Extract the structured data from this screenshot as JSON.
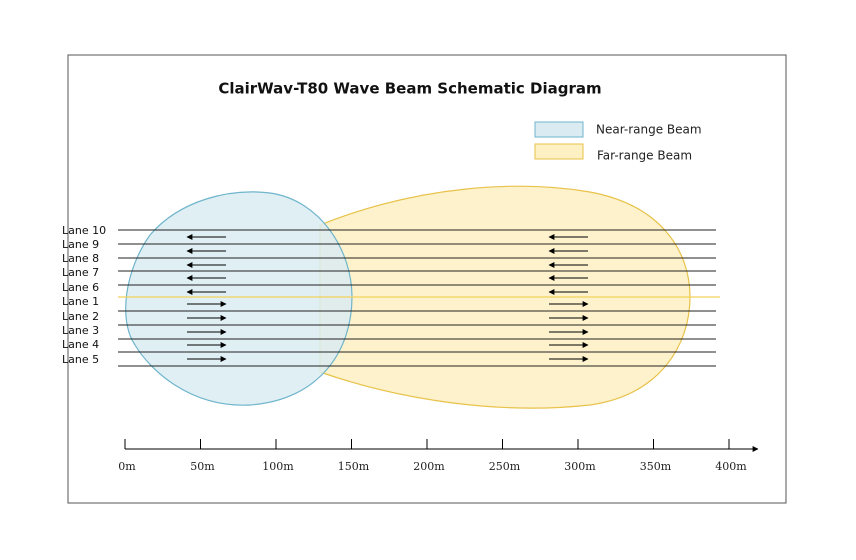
{
  "title": "ClairWav-T80 Wave Beam Schematic Diagram",
  "legend": [
    {
      "label": "Near-range Beam"
    },
    {
      "label": "Far-range Beam"
    }
  ],
  "lanes": [
    "Lane 10",
    "Lane 9",
    "Lane 8",
    "Lane 7",
    "Lane 6",
    "Lane 1",
    "Lane 2",
    "Lane 3",
    "Lane 4",
    "Lane 5"
  ],
  "axis": {
    "ticks": [
      "0m",
      "50m",
      "100m",
      "150m",
      "200m",
      "250m",
      "300m",
      "350m",
      "400m"
    ]
  }
}
